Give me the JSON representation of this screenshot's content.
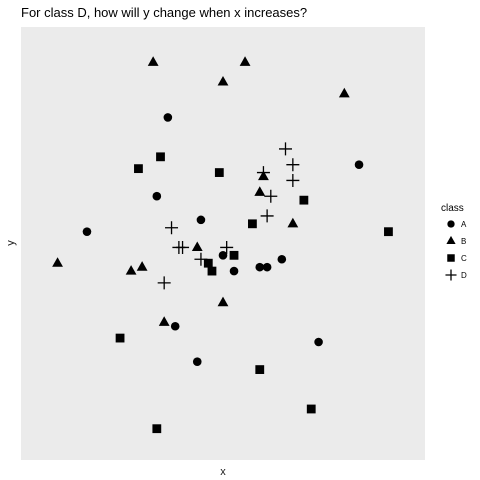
{
  "chart_data": {
    "type": "scatter",
    "title": "For class D, how will y change when x increases?",
    "xlabel": "x",
    "ylabel": "y",
    "xlim": [
      0,
      100
    ],
    "ylim": [
      0,
      100
    ],
    "grid": false,
    "x_ticks_shown": false,
    "y_ticks_shown": false,
    "panel_background": "#ebebeb",
    "legend": {
      "title": "class",
      "placement": "right",
      "entries": [
        {
          "label": "A",
          "shape": "circle"
        },
        {
          "label": "B",
          "shape": "triangle"
        },
        {
          "label": "C",
          "shape": "square"
        },
        {
          "label": "D",
          "shape": "plus"
        }
      ]
    },
    "series": [
      {
        "name": "A",
        "shape": "circle",
        "color": "#000000",
        "points": [
          [
            13,
            53
          ],
          [
            35,
            82
          ],
          [
            32,
            62
          ],
          [
            44,
            56
          ],
          [
            50,
            47
          ],
          [
            53,
            43
          ],
          [
            60,
            44
          ],
          [
            62,
            44
          ],
          [
            66,
            46
          ],
          [
            87,
            70
          ],
          [
            37,
            29
          ],
          [
            43,
            20
          ],
          [
            76,
            25
          ]
        ]
      },
      {
        "name": "B",
        "shape": "triangle",
        "color": "#000000",
        "points": [
          [
            31,
            96
          ],
          [
            50,
            91
          ],
          [
            56,
            96
          ],
          [
            83,
            88
          ],
          [
            5,
            45
          ],
          [
            25,
            43
          ],
          [
            28,
            44
          ],
          [
            43,
            49
          ],
          [
            61,
            67
          ],
          [
            60,
            63
          ],
          [
            69,
            55
          ],
          [
            50,
            35
          ],
          [
            34,
            30
          ]
        ]
      },
      {
        "name": "C",
        "shape": "square",
        "color": "#000000",
        "points": [
          [
            27,
            69
          ],
          [
            33,
            72
          ],
          [
            49,
            68
          ],
          [
            72,
            61
          ],
          [
            58,
            55
          ],
          [
            95,
            53
          ],
          [
            53,
            47
          ],
          [
            46,
            45
          ],
          [
            47,
            43
          ],
          [
            22,
            26
          ],
          [
            60,
            18
          ],
          [
            74,
            8
          ],
          [
            32,
            3
          ]
        ]
      },
      {
        "name": "D",
        "shape": "plus",
        "color": "#000000",
        "points": [
          [
            67,
            74
          ],
          [
            69,
            70
          ],
          [
            61,
            68
          ],
          [
            69,
            66
          ],
          [
            63,
            62
          ],
          [
            62,
            57
          ],
          [
            36,
            54
          ],
          [
            38,
            49
          ],
          [
            39,
            49
          ],
          [
            44,
            46
          ],
          [
            51,
            49
          ],
          [
            34,
            40
          ]
        ]
      }
    ]
  }
}
